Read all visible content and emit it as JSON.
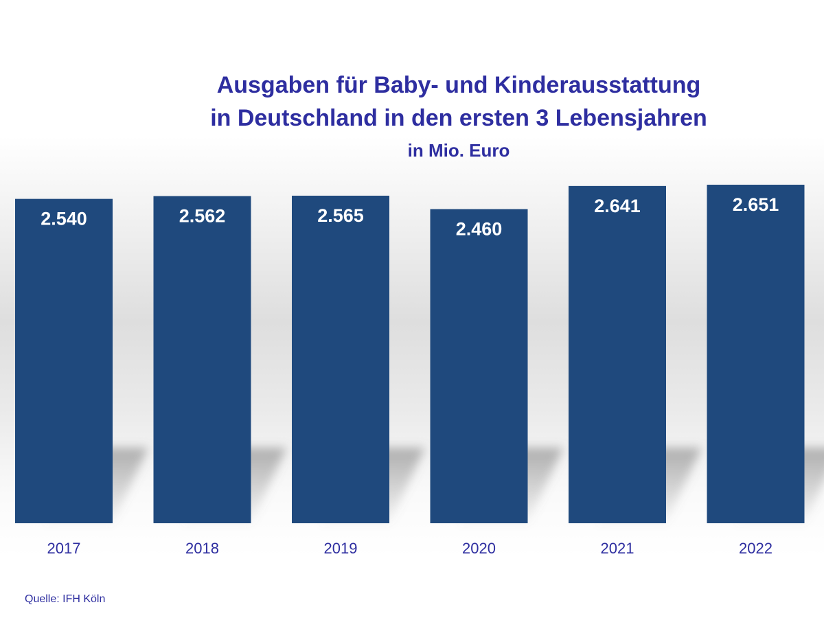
{
  "chart_data": {
    "type": "bar",
    "title_line1": "Ausgaben für Baby- und Kinderausstattung",
    "title_line2": "in Deutschland in den ersten 3 Lebensjahren",
    "subtitle": "in Mio. Euro",
    "categories": [
      "2017",
      "2018",
      "2019",
      "2020",
      "2021",
      "2022"
    ],
    "values": [
      2540,
      2562,
      2565,
      2460,
      2641,
      2651
    ],
    "value_labels": [
      "2.540",
      "2.562",
      "2.565",
      "2.460",
      "2.641",
      "2.651"
    ],
    "xlabel": "",
    "ylabel": "",
    "ylim": [
      0,
      2651
    ],
    "grid": false,
    "legend": "none",
    "colors": {
      "bar": "#1f497d",
      "title": "#2e2ea0",
      "label": "#ffffff",
      "shadow": "#8a8a8a"
    }
  },
  "source": "Quelle: IFH Köln"
}
